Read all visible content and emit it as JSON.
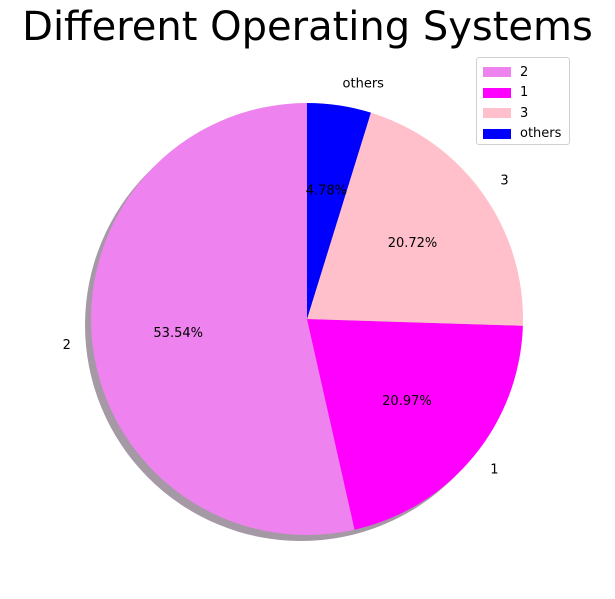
{
  "chart_data": {
    "type": "pie",
    "title": "Different Operating Systems",
    "slices": [
      {
        "label": "2",
        "value": 53.54,
        "pct_label": "53.54%",
        "color": "#ee82ee"
      },
      {
        "label": "1",
        "value": 20.97,
        "pct_label": "20.97%",
        "color": "#ff00ff"
      },
      {
        "label": "3",
        "value": 20.72,
        "pct_label": "20.72%",
        "color": "#ffc0cb"
      },
      {
        "label": "others",
        "value": 4.78,
        "pct_label": "4.78%",
        "color": "#0000ff"
      }
    ],
    "start_angle_deg": 90,
    "direction": "counterclockwise",
    "shadow": true,
    "legend_placement": "top-right"
  }
}
